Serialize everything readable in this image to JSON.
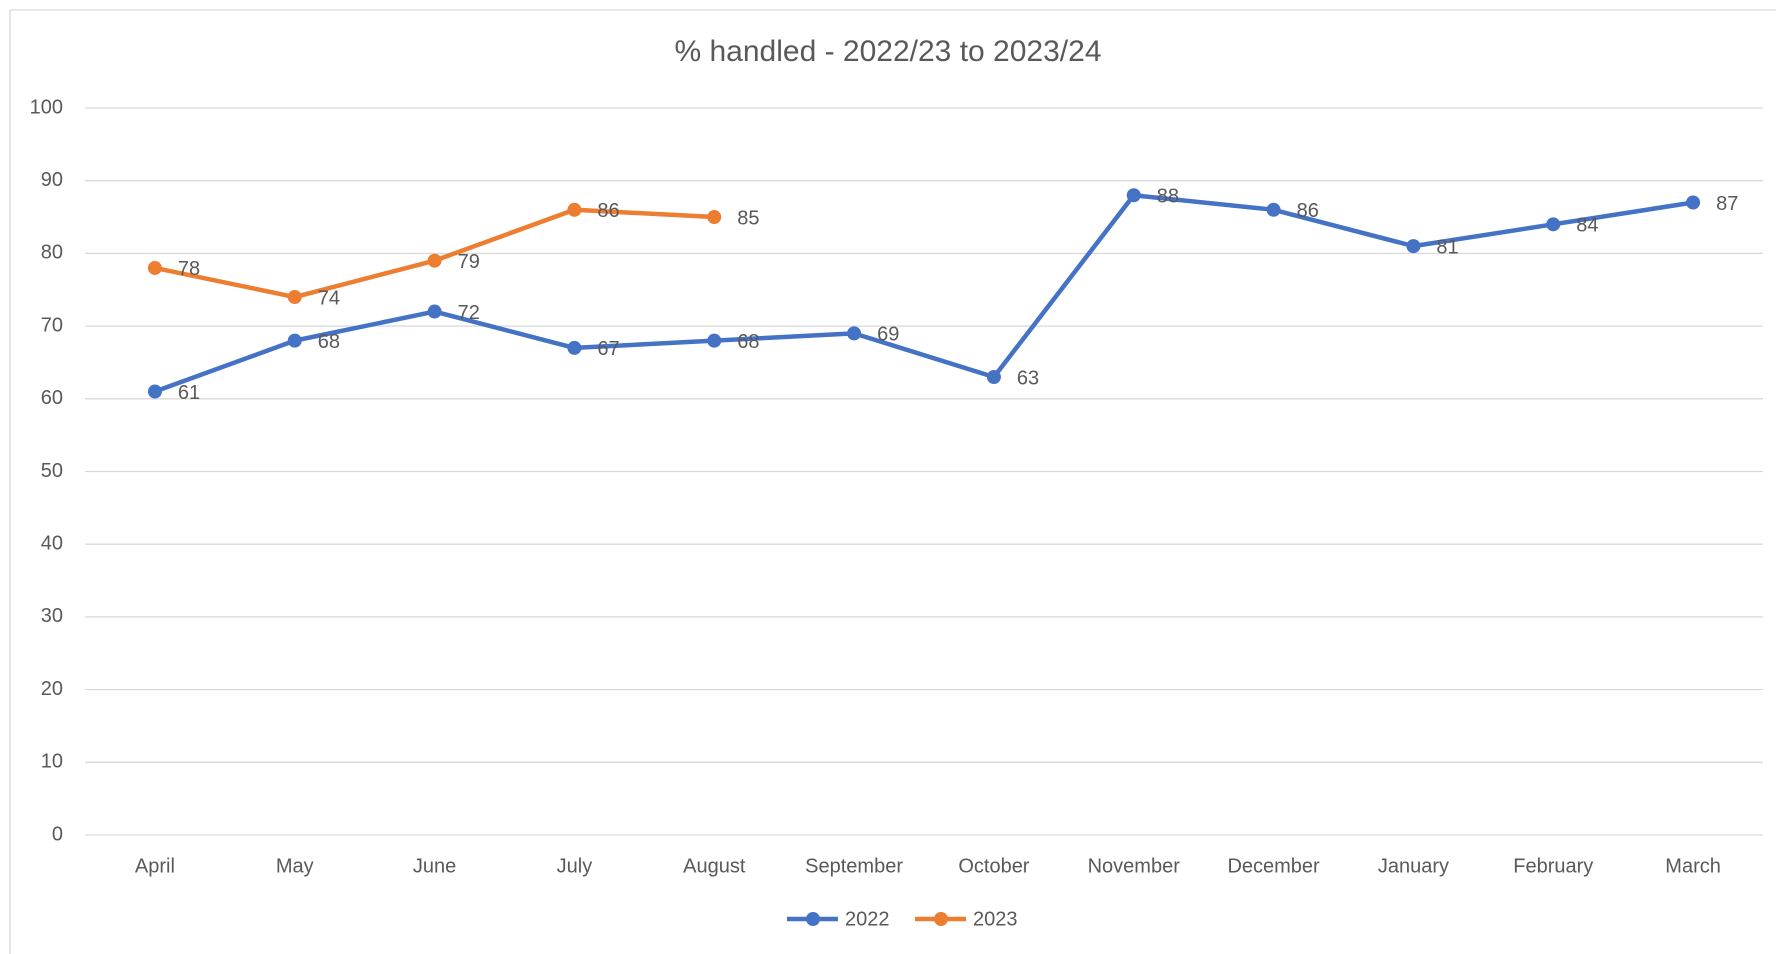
{
  "chart_data": {
    "type": "line",
    "title": "% handled - 2022/23 to 2023/24",
    "categories": [
      "April",
      "May",
      "June",
      "July",
      "August",
      "September",
      "October",
      "November",
      "December",
      "January",
      "February",
      "March"
    ],
    "series": [
      {
        "name": "2022",
        "color": "#4472c4",
        "values": [
          61,
          68,
          72,
          67,
          68,
          69,
          63,
          88,
          86,
          81,
          84,
          87
        ]
      },
      {
        "name": "2023",
        "color": "#ed7d31",
        "values": [
          78,
          74,
          79,
          86,
          85,
          null,
          null,
          null,
          null,
          null,
          null,
          null
        ]
      }
    ],
    "ylim": [
      0,
      100
    ],
    "yticks": [
      0,
      10,
      20,
      30,
      40,
      50,
      60,
      70,
      80,
      90,
      100
    ],
    "grid": true,
    "legend": "bottom"
  }
}
